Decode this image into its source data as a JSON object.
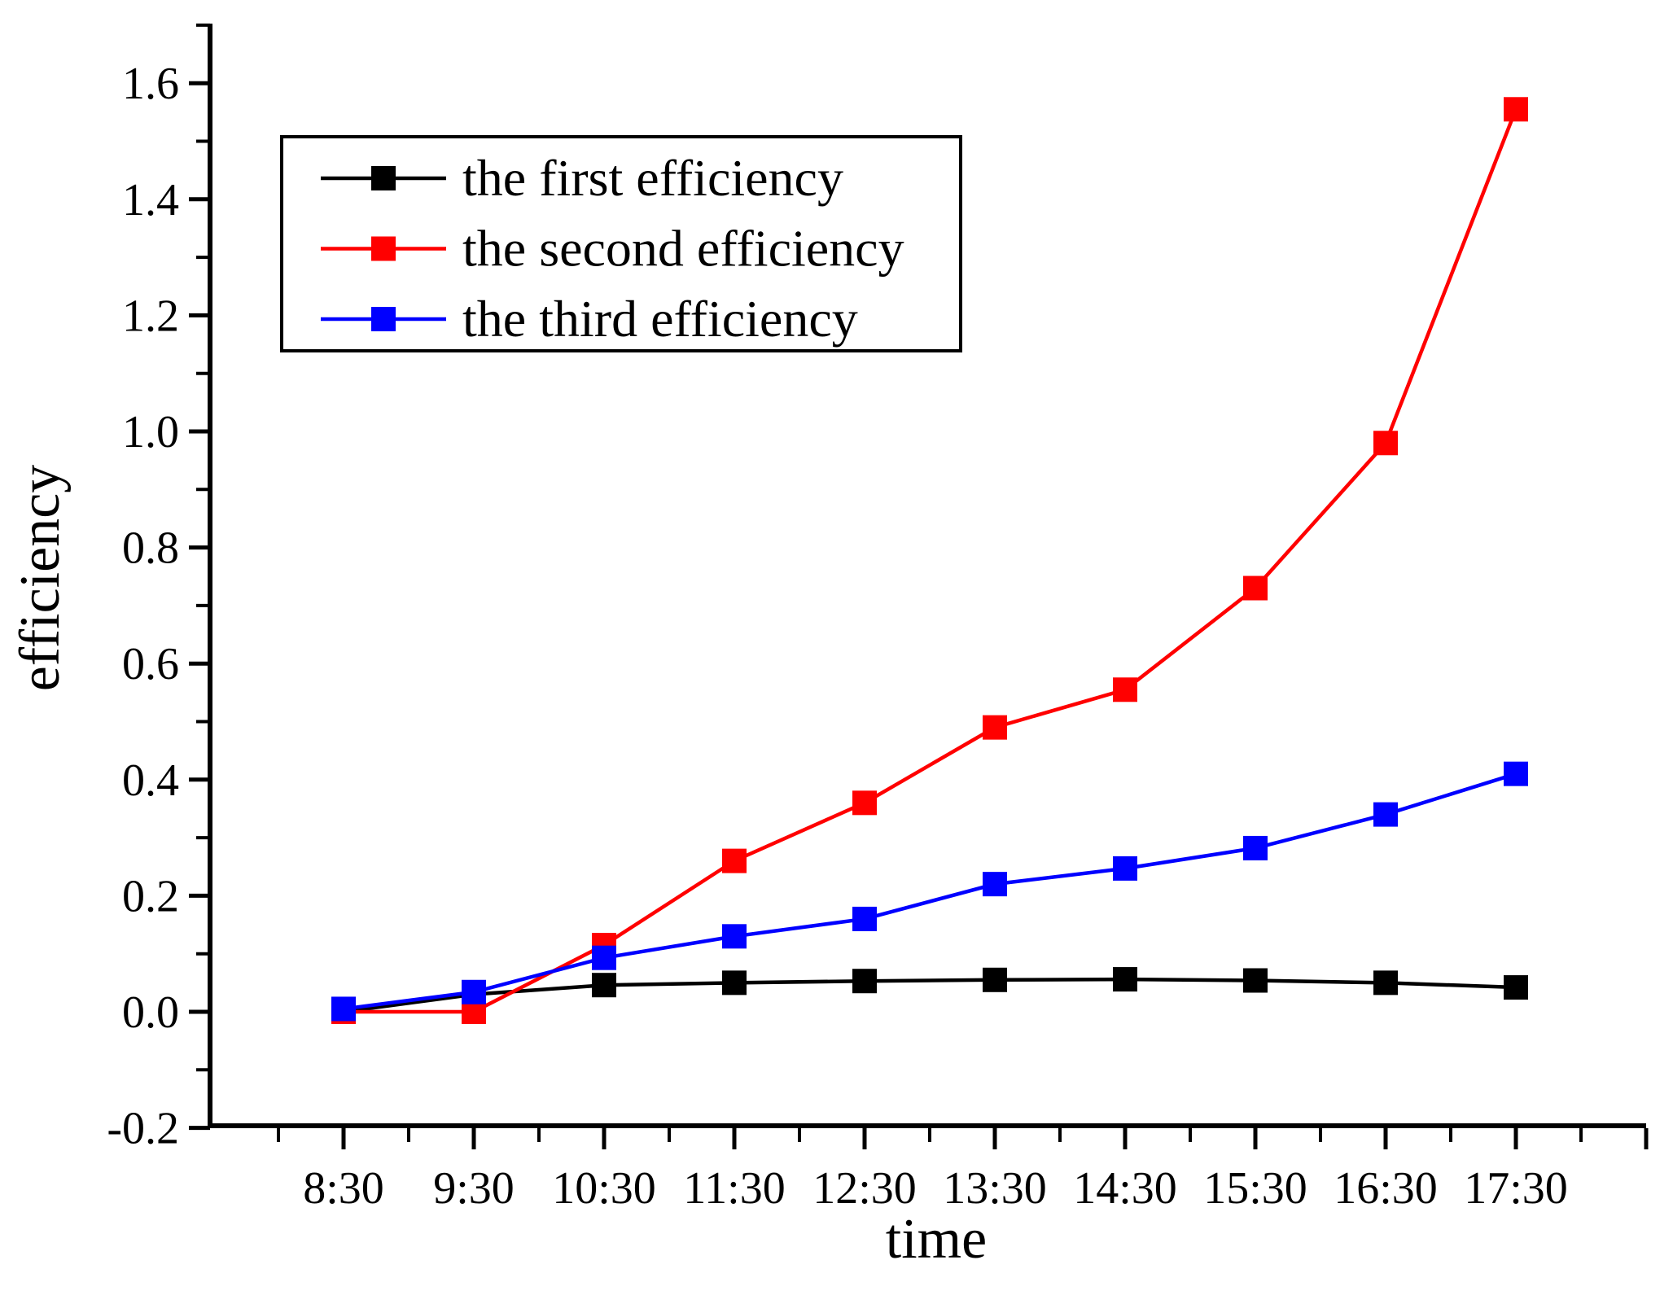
{
  "chart_data": {
    "type": "line",
    "title": "",
    "xlabel": "time",
    "ylabel": "efficiency",
    "categories": [
      "8:30",
      "9:30",
      "10:30",
      "11:30",
      "12:30",
      "13:30",
      "14:30",
      "15:30",
      "16:30",
      "17:30"
    ],
    "series": [
      {
        "name": "the first efficiency",
        "color": "#000000",
        "marker": "square",
        "values": [
          0.0,
          0.03,
          0.046,
          0.05,
          0.053,
          0.055,
          0.056,
          0.054,
          0.05,
          0.042
        ]
      },
      {
        "name": "the second efficiency",
        "color": "#ff0000",
        "marker": "square",
        "values": [
          0.0,
          0.0,
          0.115,
          0.26,
          0.36,
          0.49,
          0.555,
          0.73,
          0.98,
          1.555
        ]
      },
      {
        "name": "the third efficiency",
        "color": "#0000ff",
        "marker": "square",
        "values": [
          0.005,
          0.034,
          0.093,
          0.13,
          0.16,
          0.22,
          0.247,
          0.282,
          0.34,
          0.41
        ]
      }
    ],
    "ylim": [
      -0.2,
      1.7
    ],
    "ytick_step": 0.2,
    "ytick_labels": [
      "-0.2",
      "0.0",
      "0.2",
      "0.4",
      "0.6",
      "0.8",
      "1.0",
      "1.2",
      "1.4",
      "1.6"
    ],
    "grid": false,
    "legend_position": "top-left",
    "axis_color": "#000000",
    "background_color": "#ffffff"
  }
}
